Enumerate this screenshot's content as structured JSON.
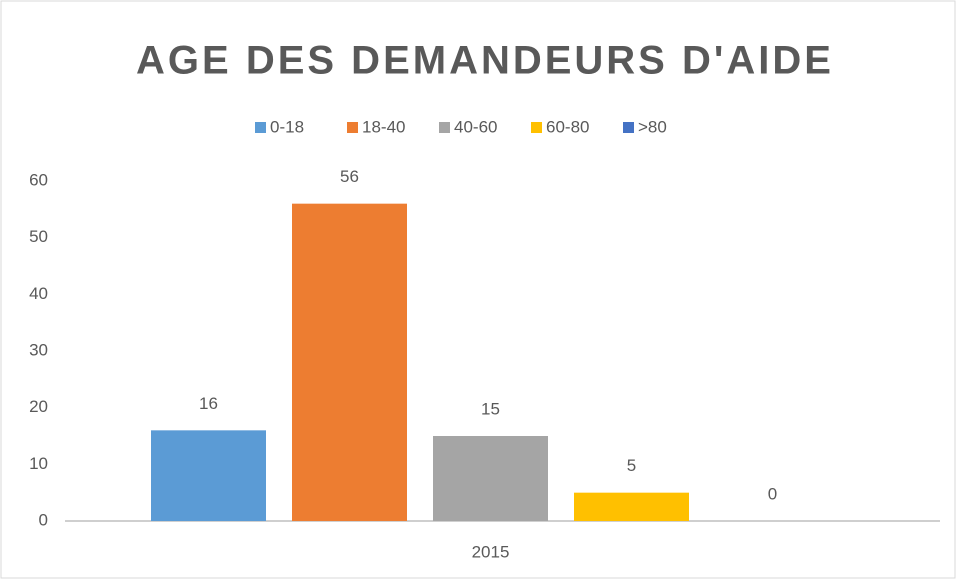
{
  "chart_data": {
    "type": "bar",
    "title": "AGE DES DEMANDEURS D'AIDE",
    "categories": [
      "2015"
    ],
    "series": [
      {
        "name": "0-18",
        "color": "#5b9bd5",
        "values": [
          16
        ]
      },
      {
        "name": "18-40",
        "color": "#ed7d31",
        "values": [
          56
        ]
      },
      {
        "name": "40-60",
        "color": "#a5a5a5",
        "values": [
          15
        ]
      },
      {
        "name": "60-80",
        "color": "#ffc000",
        "values": [
          5
        ]
      },
      {
        "name": ">80",
        "color": "#4472c4",
        "values": [
          0
        ]
      }
    ],
    "ylim": [
      0,
      60
    ],
    "yticks": [
      0,
      10,
      20,
      30,
      40,
      50,
      60
    ],
    "grid": false,
    "legend": "top",
    "data_labels": true
  }
}
